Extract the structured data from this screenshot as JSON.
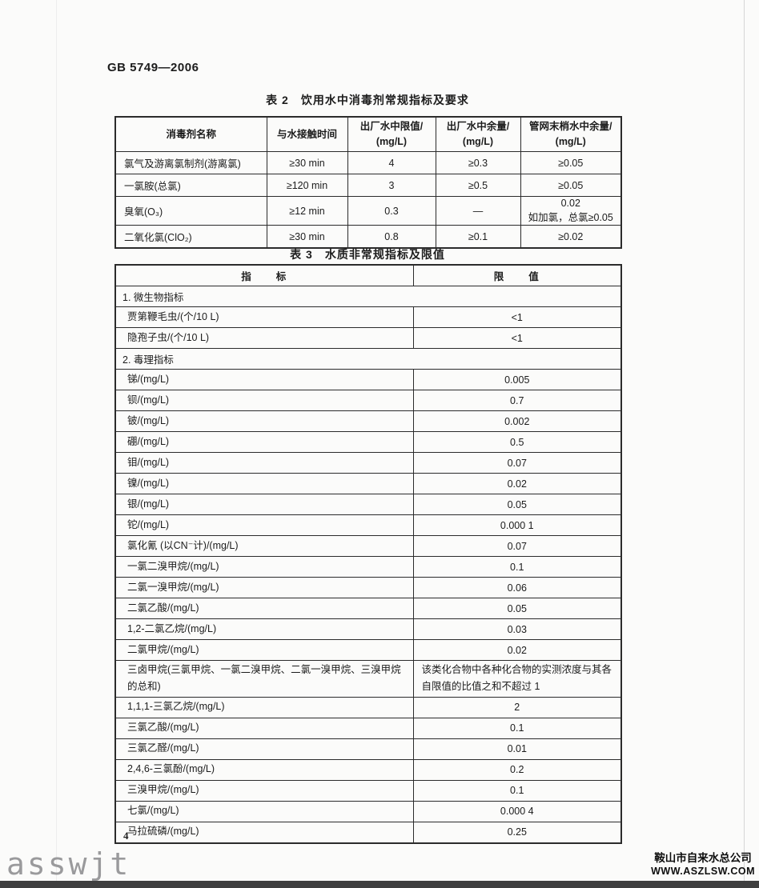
{
  "page": {
    "doc_code": "GB 5749—2006",
    "page_number": "4",
    "watermark": "asswjt",
    "footer_company": "鞍山市自来水总公司",
    "footer_site": "WWW.ASZLSW.COM"
  },
  "table2": {
    "caption": "表 2　饮用水中消毒剂常规指标及要求",
    "headers": [
      {
        "l1": "消毒剂名称",
        "l2": ""
      },
      {
        "l1": "与水接触时间",
        "l2": ""
      },
      {
        "l1": "出厂水中限值/",
        "l2": "(mg/L)"
      },
      {
        "l1": "出厂水中余量/",
        "l2": "(mg/L)"
      },
      {
        "l1": "管网末梢水中余量/",
        "l2": "(mg/L)"
      }
    ],
    "rows": [
      {
        "name": "氯气及游离氯制剂(游离氯)",
        "time": "≥30 min",
        "limit": "4",
        "residual": "≥0.3",
        "tap1": "≥0.05",
        "tap2": ""
      },
      {
        "name": "一氯胺(总氯)",
        "time": "≥120 min",
        "limit": "3",
        "residual": "≥0.5",
        "tap1": "≥0.05",
        "tap2": ""
      },
      {
        "name": "臭氧(O₃)",
        "time": "≥12 min",
        "limit": "0.3",
        "residual": "—",
        "tap1": "0.02",
        "tap2": "如加氯，总氯≥0.05"
      },
      {
        "name": "二氧化氯(ClO₂)",
        "time": "≥30 min",
        "limit": "0.8",
        "residual": "≥0.1",
        "tap1": "≥0.02",
        "tap2": ""
      }
    ]
  },
  "table3": {
    "caption": "表 3　水质非常规指标及限值",
    "headers": [
      "指　　标",
      "限　　值"
    ],
    "rows": [
      {
        "type": "section",
        "label": "1. 微生物指标"
      },
      {
        "type": "item",
        "label": "贾第鞭毛虫/(个/10 L)",
        "value": "<1"
      },
      {
        "type": "item",
        "label": "隐孢子虫/(个/10 L)",
        "value": "<1"
      },
      {
        "type": "section",
        "label": "2. 毒理指标"
      },
      {
        "type": "item",
        "label": "锑/(mg/L)",
        "value": "0.005"
      },
      {
        "type": "item",
        "label": "钡/(mg/L)",
        "value": "0.7"
      },
      {
        "type": "item",
        "label": "铍/(mg/L)",
        "value": "0.002"
      },
      {
        "type": "item",
        "label": "硼/(mg/L)",
        "value": "0.5"
      },
      {
        "type": "item",
        "label": "钼/(mg/L)",
        "value": "0.07"
      },
      {
        "type": "item",
        "label": "镍/(mg/L)",
        "value": "0.02"
      },
      {
        "type": "item",
        "label": "银/(mg/L)",
        "value": "0.05"
      },
      {
        "type": "item",
        "label": "铊/(mg/L)",
        "value": "0.000 1"
      },
      {
        "type": "item",
        "label": "氯化氰 (以CN⁻计)/(mg/L)",
        "value": "0.07"
      },
      {
        "type": "item",
        "label": "一氯二溴甲烷/(mg/L)",
        "value": "0.1"
      },
      {
        "type": "item",
        "label": "二氯一溴甲烷/(mg/L)",
        "value": "0.06"
      },
      {
        "type": "item",
        "label": "二氯乙酸/(mg/L)",
        "value": "0.05"
      },
      {
        "type": "item",
        "label": "1,2-二氯乙烷/(mg/L)",
        "value": "0.03"
      },
      {
        "type": "item",
        "label": "二氯甲烷/(mg/L)",
        "value": "0.02"
      },
      {
        "type": "item",
        "align": "left",
        "label": "三卤甲烷(三氯甲烷、一氯二溴甲烷、二氯一溴甲烷、三溴甲烷的总和)",
        "value": "该类化合物中各种化合物的实测浓度与其各自限值的比值之和不超过 1"
      },
      {
        "type": "item",
        "label": "1,1,1-三氯乙烷/(mg/L)",
        "value": "2"
      },
      {
        "type": "item",
        "label": "三氯乙酸/(mg/L)",
        "value": "0.1"
      },
      {
        "type": "item",
        "label": "三氯乙醛/(mg/L)",
        "value": "0.01"
      },
      {
        "type": "item",
        "label": "2,4,6-三氯酚/(mg/L)",
        "value": "0.2"
      },
      {
        "type": "item",
        "label": "三溴甲烷/(mg/L)",
        "value": "0.1"
      },
      {
        "type": "item",
        "label": "七氯/(mg/L)",
        "value": "0.000 4"
      },
      {
        "type": "item",
        "label": "马拉硫磷/(mg/L)",
        "value": "0.25"
      }
    ]
  }
}
